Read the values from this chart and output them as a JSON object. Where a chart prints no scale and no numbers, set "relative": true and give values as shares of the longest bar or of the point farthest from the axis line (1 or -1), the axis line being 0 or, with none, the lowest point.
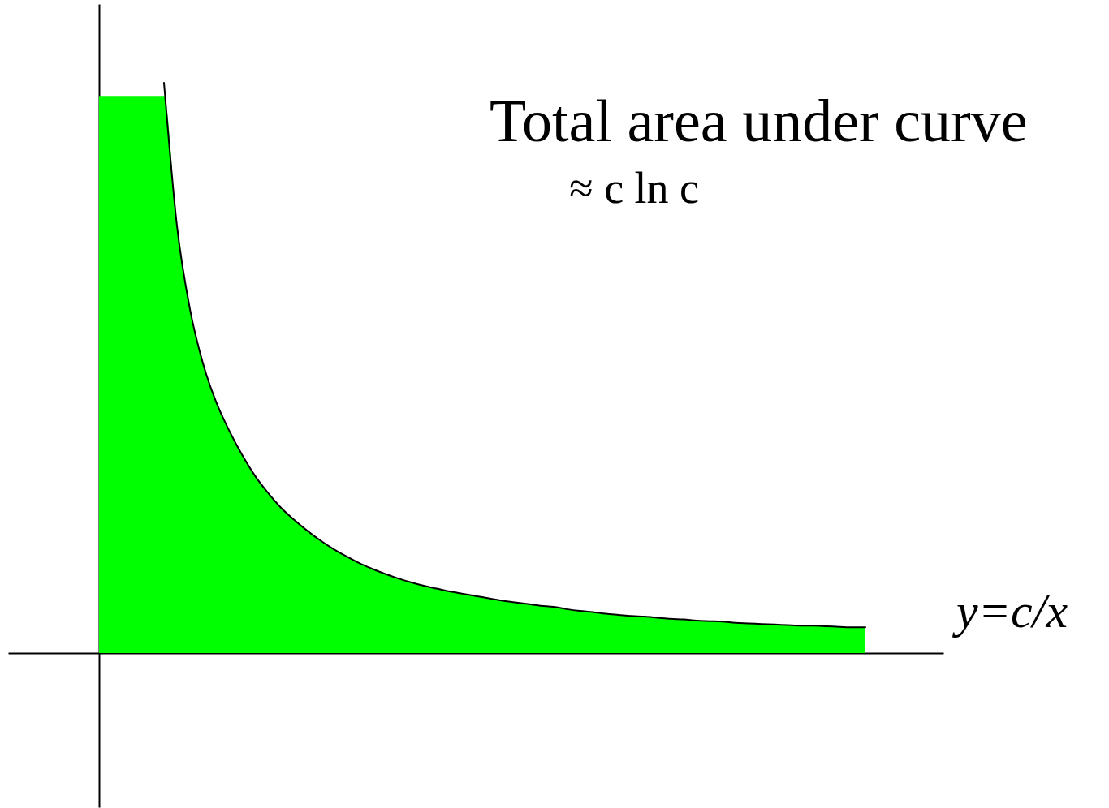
{
  "chart_data": {
    "type": "area",
    "relative": true,
    "grid": false,
    "categories": [
      null,
      null,
      null,
      null,
      null,
      null,
      null,
      null,
      null,
      null,
      null,
      null,
      null,
      null,
      null,
      null,
      null,
      null,
      null,
      null,
      null,
      null,
      null,
      null,
      null,
      null,
      null,
      null,
      null,
      null,
      null,
      null,
      null,
      null,
      null,
      null,
      null,
      null,
      null,
      null,
      null,
      null,
      null,
      null,
      null,
      null,
      null,
      null,
      null,
      null,
      null,
      null,
      null,
      null,
      null,
      null,
      null,
      null,
      null,
      null
    ],
    "annotations": [
      "Total area under curve",
      "≈ c ln c"
    ],
    "series": [
      {
        "color": "#00ff00",
        "values": [
          0.977,
          0.977,
          0.977,
          0.977,
          0.977,
          0.977,
          0.749,
          0.603,
          0.508,
          0.441,
          0.391,
          0.348,
          0.311,
          0.281,
          0.255,
          0.234,
          0.215,
          0.198,
          0.183,
          0.17,
          0.158,
          0.148,
          0.139,
          0.131,
          0.124,
          0.118,
          0.113,
          0.108,
          0.104,
          0.1,
          0.096,
          0.092,
          0.089,
          0.086,
          0.083,
          0.081,
          0.077,
          0.074,
          0.072,
          0.069,
          0.067,
          0.065,
          0.064,
          0.062,
          0.06,
          0.059,
          0.057,
          0.056,
          0.055,
          0.053,
          0.052,
          0.051,
          0.05,
          0.049,
          0.048,
          0.048,
          0.047,
          0.046,
          0.045,
          0.045
        ]
      },
      {
        "type": "line",
        "name": "y=c/x",
        "color": "#000000",
        "values": [
          null,
          null,
          null,
          null,
          null,
          1.0,
          0.749,
          0.603,
          0.508,
          0.441,
          0.391,
          0.348,
          0.311,
          0.281,
          0.255,
          0.234,
          0.215,
          0.198,
          0.183,
          0.17,
          0.158,
          0.148,
          0.139,
          0.131,
          0.124,
          0.118,
          0.113,
          0.108,
          0.104,
          0.1,
          0.096,
          0.092,
          0.089,
          0.086,
          0.083,
          0.081,
          0.077,
          0.074,
          0.072,
          0.069,
          0.067,
          0.065,
          0.064,
          0.062,
          0.06,
          0.059,
          0.057,
          0.056,
          0.055,
          0.053,
          0.052,
          0.051,
          0.05,
          0.049,
          0.048,
          0.048,
          0.047,
          0.046,
          0.045,
          0.045
        ]
      }
    ]
  }
}
